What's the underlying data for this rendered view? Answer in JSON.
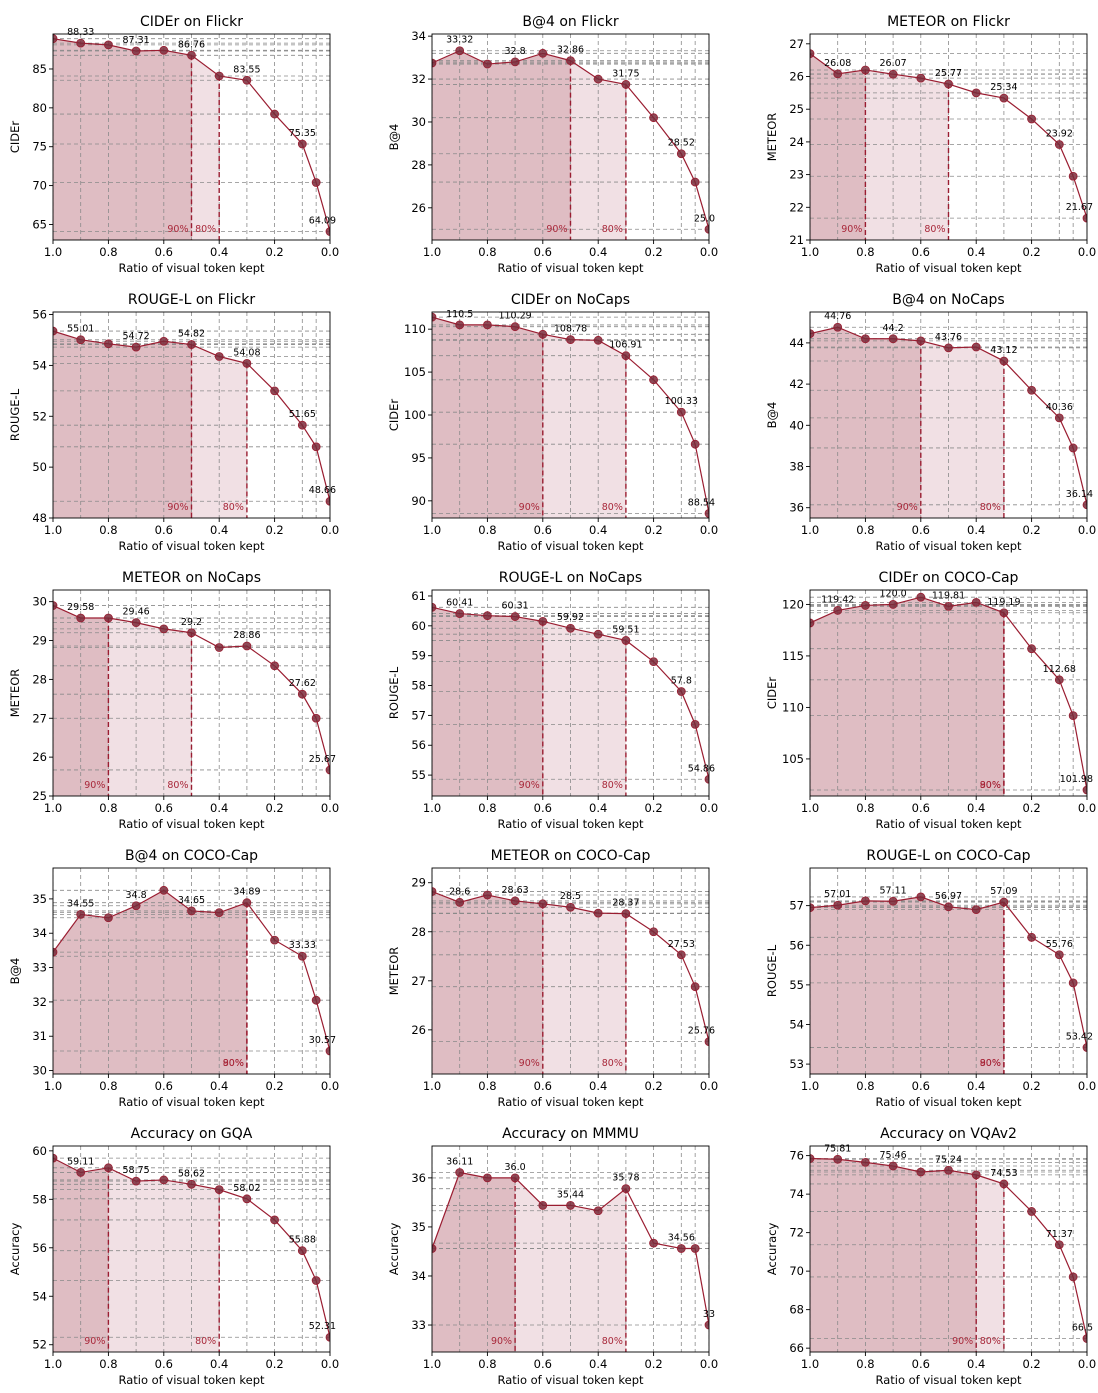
{
  "figure": {
    "colors": {
      "line": "#9a1d31",
      "marker_face": "#7a2a3a",
      "fill90": "#dcb6bd",
      "fill80": "#f0dde1",
      "grid": "#8a8a8a"
    },
    "markers": {
      "threshold_90": "90%",
      "threshold_80": "80%"
    }
  },
  "chart_data": [
    {
      "type": "line",
      "title": "CIDEr on Flickr",
      "xlabel": "Ratio of visual token kept",
      "ylabel": "CIDEr",
      "x": [
        1.0,
        0.9,
        0.8,
        0.7,
        0.6,
        0.5,
        0.4,
        0.3,
        0.2,
        0.1,
        0.05,
        0.0
      ],
      "y": [
        88.9,
        88.33,
        88.1,
        87.31,
        87.4,
        86.76,
        84.1,
        83.55,
        79.2,
        75.35,
        70.4,
        64.09
      ],
      "labels": [
        null,
        "88.33",
        null,
        "87.31",
        null,
        "86.76",
        null,
        "83.55",
        null,
        "75.35",
        null,
        "64.09"
      ],
      "xlim": [
        1.0,
        0.0
      ],
      "ylim": [
        63,
        89.5
      ],
      "yticks": [
        65,
        70,
        75,
        80,
        85
      ],
      "xticks": [
        1.0,
        0.8,
        0.6,
        0.4,
        0.2,
        0.0
      ],
      "threshold_90_x": 0.5,
      "threshold_80_x": 0.4
    },
    {
      "type": "line",
      "title": "B@4 on Flickr",
      "xlabel": "Ratio of visual token kept",
      "ylabel": "B@4",
      "x": [
        1.0,
        0.9,
        0.8,
        0.7,
        0.6,
        0.5,
        0.4,
        0.3,
        0.2,
        0.1,
        0.05,
        0.0
      ],
      "y": [
        32.75,
        33.32,
        32.7,
        32.8,
        33.2,
        32.86,
        32.0,
        31.75,
        30.2,
        28.52,
        27.2,
        25.0
      ],
      "labels": [
        null,
        "33.32",
        null,
        "32.8",
        null,
        "32.86",
        null,
        "31.75",
        null,
        "28.52",
        null,
        "25.0"
      ],
      "xlim": [
        1.0,
        0.0
      ],
      "ylim": [
        24.5,
        34.1
      ],
      "yticks": [
        26,
        28,
        30,
        32,
        34
      ],
      "xticks": [
        1.0,
        0.8,
        0.6,
        0.4,
        0.2,
        0.0
      ],
      "threshold_90_x": 0.5,
      "threshold_80_x": 0.3
    },
    {
      "type": "line",
      "title": "METEOR on Flickr",
      "xlabel": "Ratio of visual token kept",
      "ylabel": "METEOR",
      "x": [
        1.0,
        0.9,
        0.8,
        0.7,
        0.6,
        0.5,
        0.4,
        0.3,
        0.2,
        0.1,
        0.05,
        0.0
      ],
      "y": [
        26.7,
        26.08,
        26.2,
        26.07,
        25.95,
        25.77,
        25.5,
        25.34,
        24.7,
        23.92,
        22.95,
        21.67
      ],
      "labels": [
        null,
        "26.08",
        null,
        "26.07",
        null,
        "25.77",
        null,
        "25.34",
        null,
        "23.92",
        null,
        "21.67"
      ],
      "xlim": [
        1.0,
        0.0
      ],
      "ylim": [
        21,
        27.3
      ],
      "yticks": [
        21,
        22,
        23,
        24,
        25,
        26,
        27
      ],
      "xticks": [
        1.0,
        0.8,
        0.6,
        0.4,
        0.2,
        0.0
      ],
      "threshold_90_x": 0.8,
      "threshold_80_x": 0.5
    },
    {
      "type": "line",
      "title": "ROUGE-L on Flickr",
      "xlabel": "Ratio of visual token kept",
      "ylabel": "ROUGE-L",
      "x": [
        1.0,
        0.9,
        0.8,
        0.7,
        0.6,
        0.5,
        0.4,
        0.3,
        0.2,
        0.1,
        0.05,
        0.0
      ],
      "y": [
        55.35,
        55.01,
        54.85,
        54.72,
        54.95,
        54.82,
        54.35,
        54.08,
        53.0,
        51.65,
        50.8,
        48.66
      ],
      "labels": [
        null,
        "55.01",
        null,
        "54.72",
        null,
        "54.82",
        null,
        "54.08",
        null,
        "51.65",
        null,
        "48.66"
      ],
      "xlim": [
        1.0,
        0.0
      ],
      "ylim": [
        48,
        56.1
      ],
      "yticks": [
        48,
        50,
        52,
        54,
        56
      ],
      "xticks": [
        1.0,
        0.8,
        0.6,
        0.4,
        0.2,
        0.0
      ],
      "threshold_90_x": 0.5,
      "threshold_80_x": 0.3
    },
    {
      "type": "line",
      "title": "CIDEr on NoCaps",
      "xlabel": "Ratio of visual token kept",
      "ylabel": "CIDEr",
      "x": [
        1.0,
        0.9,
        0.8,
        0.7,
        0.6,
        0.5,
        0.4,
        0.3,
        0.2,
        0.1,
        0.05,
        0.0
      ],
      "y": [
        111.4,
        110.5,
        110.5,
        110.29,
        109.4,
        108.78,
        108.7,
        106.91,
        104.1,
        100.33,
        96.6,
        88.54
      ],
      "labels": [
        null,
        "110.5",
        null,
        "110.29",
        null,
        "108.78",
        null,
        "106.91",
        null,
        "100.33",
        null,
        "88.54"
      ],
      "xlim": [
        1.0,
        0.0
      ],
      "ylim": [
        88,
        112
      ],
      "yticks": [
        90,
        95,
        100,
        105,
        110
      ],
      "xticks": [
        1.0,
        0.8,
        0.6,
        0.4,
        0.2,
        0.0
      ],
      "threshold_90_x": 0.6,
      "threshold_80_x": 0.3
    },
    {
      "type": "line",
      "title": "B@4 on NoCaps",
      "xlabel": "Ratio of visual token kept",
      "ylabel": "B@4",
      "x": [
        1.0,
        0.9,
        0.8,
        0.7,
        0.6,
        0.5,
        0.4,
        0.3,
        0.2,
        0.1,
        0.05,
        0.0
      ],
      "y": [
        44.45,
        44.76,
        44.2,
        44.2,
        44.1,
        43.76,
        43.8,
        43.12,
        41.7,
        40.36,
        38.9,
        36.14
      ],
      "labels": [
        null,
        "44.76",
        null,
        "44.2",
        null,
        "43.76",
        null,
        "43.12",
        null,
        "40.36",
        null,
        "36.14"
      ],
      "xlim": [
        1.0,
        0.0
      ],
      "ylim": [
        35.5,
        45.5
      ],
      "yticks": [
        36,
        38,
        40,
        42,
        44
      ],
      "xticks": [
        1.0,
        0.8,
        0.6,
        0.4,
        0.2,
        0.0
      ],
      "threshold_90_x": 0.6,
      "threshold_80_x": 0.3
    },
    {
      "type": "line",
      "title": "METEOR on NoCaps",
      "xlabel": "Ratio of visual token kept",
      "ylabel": "METEOR",
      "x": [
        1.0,
        0.9,
        0.8,
        0.7,
        0.6,
        0.5,
        0.4,
        0.3,
        0.2,
        0.1,
        0.05,
        0.0
      ],
      "y": [
        29.9,
        29.58,
        29.58,
        29.46,
        29.3,
        29.2,
        28.82,
        28.86,
        28.35,
        27.62,
        27.0,
        25.67
      ],
      "labels": [
        null,
        "29.58",
        null,
        "29.46",
        null,
        "29.2",
        null,
        "28.86",
        null,
        "27.62",
        null,
        "25.67"
      ],
      "xlim": [
        1.0,
        0.0
      ],
      "ylim": [
        25,
        30.3
      ],
      "yticks": [
        25,
        26,
        27,
        28,
        29,
        30
      ],
      "xticks": [
        1.0,
        0.8,
        0.6,
        0.4,
        0.2,
        0.0
      ],
      "threshold_90_x": 0.8,
      "threshold_80_x": 0.5
    },
    {
      "type": "line",
      "title": "ROUGE-L on NoCaps",
      "xlabel": "Ratio of visual token kept",
      "ylabel": "ROUGE-L",
      "x": [
        1.0,
        0.9,
        0.8,
        0.7,
        0.6,
        0.5,
        0.4,
        0.3,
        0.2,
        0.1,
        0.05,
        0.0
      ],
      "y": [
        60.62,
        60.41,
        60.34,
        60.31,
        60.15,
        59.92,
        59.72,
        59.51,
        58.8,
        57.8,
        56.7,
        54.86
      ],
      "labels": [
        null,
        "60.41",
        null,
        "60.31",
        null,
        "59.92",
        null,
        "59.51",
        null,
        "57.8",
        null,
        "54.86"
      ],
      "xlim": [
        1.0,
        0.0
      ],
      "ylim": [
        54.3,
        61.2
      ],
      "yticks": [
        55,
        56,
        57,
        58,
        59,
        60,
        61
      ],
      "xticks": [
        1.0,
        0.8,
        0.6,
        0.4,
        0.2,
        0.0
      ],
      "threshold_90_x": 0.6,
      "threshold_80_x": 0.3
    },
    {
      "type": "line",
      "title": "CIDEr on COCO-Cap",
      "xlabel": "Ratio of visual token kept",
      "ylabel": "CIDEr",
      "x": [
        1.0,
        0.9,
        0.8,
        0.7,
        0.6,
        0.5,
        0.4,
        0.3,
        0.2,
        0.1,
        0.05,
        0.0
      ],
      "y": [
        118.2,
        119.42,
        119.9,
        120.0,
        120.7,
        119.81,
        120.2,
        119.19,
        115.7,
        112.68,
        109.2,
        101.98
      ],
      "labels": [
        null,
        "119.42",
        null,
        "120.0",
        null,
        "119.81",
        null,
        "119.19",
        null,
        "112.68",
        null,
        "101.98"
      ],
      "xlim": [
        1.0,
        0.0
      ],
      "ylim": [
        101.4,
        121.4
      ],
      "yticks": [
        105,
        110,
        115,
        120
      ],
      "xticks": [
        1.0,
        0.8,
        0.6,
        0.4,
        0.2,
        0.0
      ],
      "threshold_90_x": 0.3,
      "threshold_80_x": 0.3
    },
    {
      "type": "line",
      "title": "B@4 on COCO-Cap",
      "xlabel": "Ratio of visual token kept",
      "ylabel": "B@4",
      "x": [
        1.0,
        0.9,
        0.8,
        0.7,
        0.6,
        0.5,
        0.4,
        0.3,
        0.2,
        0.1,
        0.05,
        0.0
      ],
      "y": [
        33.45,
        34.55,
        34.45,
        34.8,
        35.25,
        34.65,
        34.6,
        34.89,
        33.8,
        33.33,
        32.05,
        30.57
      ],
      "labels": [
        null,
        "34.55",
        null,
        "34.8",
        null,
        "34.65",
        null,
        "34.89",
        null,
        "33.33",
        null,
        "30.57"
      ],
      "xlim": [
        1.0,
        0.0
      ],
      "ylim": [
        29.9,
        35.9
      ],
      "yticks": [
        30,
        31,
        32,
        33,
        34,
        35
      ],
      "xticks": [
        1.0,
        0.8,
        0.6,
        0.4,
        0.2,
        0.0
      ],
      "threshold_90_x": 0.3,
      "threshold_80_x": 0.3
    },
    {
      "type": "line",
      "title": "METEOR on COCO-Cap",
      "xlabel": "Ratio of visual token kept",
      "ylabel": "METEOR",
      "x": [
        1.0,
        0.9,
        0.8,
        0.7,
        0.6,
        0.5,
        0.4,
        0.3,
        0.2,
        0.1,
        0.05,
        0.0
      ],
      "y": [
        28.82,
        28.6,
        28.75,
        28.63,
        28.57,
        28.5,
        28.38,
        28.37,
        28.0,
        27.53,
        26.88,
        25.76
      ],
      "labels": [
        null,
        "28.6",
        null,
        "28.63",
        null,
        "28.5",
        null,
        "28.37",
        null,
        "27.53",
        null,
        "25.76"
      ],
      "xlim": [
        1.0,
        0.0
      ],
      "ylim": [
        25.1,
        29.3
      ],
      "yticks": [
        26,
        27,
        28,
        29
      ],
      "xticks": [
        1.0,
        0.8,
        0.6,
        0.4,
        0.2,
        0.0
      ],
      "threshold_90_x": 0.6,
      "threshold_80_x": 0.3
    },
    {
      "type": "line",
      "title": "ROUGE-L on COCO-Cap",
      "xlabel": "Ratio of visual token kept",
      "ylabel": "ROUGE-L",
      "x": [
        1.0,
        0.9,
        0.8,
        0.7,
        0.6,
        0.5,
        0.4,
        0.3,
        0.2,
        0.1,
        0.05,
        0.0
      ],
      "y": [
        56.95,
        57.01,
        57.12,
        57.11,
        57.22,
        56.97,
        56.9,
        57.09,
        56.2,
        55.76,
        55.05,
        53.42
      ],
      "labels": [
        null,
        "57.01",
        null,
        "57.11",
        null,
        "56.97",
        null,
        "57.09",
        null,
        "55.76",
        null,
        "53.42"
      ],
      "xlim": [
        1.0,
        0.0
      ],
      "ylim": [
        52.75,
        57.95
      ],
      "yticks": [
        53,
        54,
        55,
        56,
        57
      ],
      "xticks": [
        1.0,
        0.8,
        0.6,
        0.4,
        0.2,
        0.0
      ],
      "threshold_90_x": 0.3,
      "threshold_80_x": 0.3
    },
    {
      "type": "line",
      "title": "Accuracy on GQA",
      "xlabel": "Ratio of visual token kept",
      "ylabel": "Accuracy",
      "x": [
        1.0,
        0.9,
        0.8,
        0.7,
        0.6,
        0.5,
        0.4,
        0.3,
        0.2,
        0.1,
        0.05,
        0.0
      ],
      "y": [
        59.7,
        59.11,
        59.3,
        58.75,
        58.8,
        58.62,
        58.4,
        58.02,
        57.15,
        55.88,
        54.65,
        52.31
      ],
      "labels": [
        null,
        "59.11",
        null,
        "58.75",
        null,
        "58.62",
        null,
        "58.02",
        null,
        "55.88",
        null,
        "52.31"
      ],
      "xlim": [
        1.0,
        0.0
      ],
      "ylim": [
        51.7,
        60.2
      ],
      "yticks": [
        52,
        54,
        56,
        58,
        60
      ],
      "xticks": [
        1.0,
        0.8,
        0.6,
        0.4,
        0.2,
        0.0
      ],
      "threshold_90_x": 0.8,
      "threshold_80_x": 0.4
    },
    {
      "type": "line",
      "title": "Accuracy on MMMU",
      "xlabel": "Ratio of visual token kept",
      "ylabel": "Accuracy",
      "x": [
        1.0,
        0.9,
        0.8,
        0.7,
        0.6,
        0.5,
        0.4,
        0.3,
        0.2,
        0.1,
        0.05,
        0.0
      ],
      "y": [
        34.56,
        36.11,
        36.0,
        36.0,
        35.44,
        35.44,
        35.33,
        35.78,
        34.67,
        34.56,
        34.56,
        33.0
      ],
      "labels": [
        null,
        "36.11",
        null,
        "36.0",
        null,
        "35.44",
        null,
        "35.78",
        null,
        "34.56",
        null,
        "33"
      ],
      "xlim": [
        1.0,
        0.0
      ],
      "ylim": [
        32.45,
        36.65
      ],
      "yticks": [
        33,
        34,
        35,
        36
      ],
      "xticks": [
        1.0,
        0.8,
        0.6,
        0.4,
        0.2,
        0.0
      ],
      "threshold_90_x": 0.7,
      "threshold_80_x": 0.3
    },
    {
      "type": "line",
      "title": "Accuracy on VQAv2",
      "xlabel": "Ratio of visual token kept",
      "ylabel": "Accuracy",
      "x": [
        1.0,
        0.9,
        0.8,
        0.7,
        0.6,
        0.5,
        0.4,
        0.3,
        0.2,
        0.1,
        0.05,
        0.0
      ],
      "y": [
        75.85,
        75.81,
        75.65,
        75.46,
        75.15,
        75.24,
        75.0,
        74.53,
        73.1,
        71.37,
        69.7,
        66.5
      ],
      "labels": [
        null,
        "75.81",
        null,
        "75.46",
        null,
        "75.24",
        null,
        "74.53",
        null,
        "71.37",
        null,
        "66.5"
      ],
      "xlim": [
        1.0,
        0.0
      ],
      "ylim": [
        65.8,
        76.5
      ],
      "yticks": [
        66,
        68,
        70,
        72,
        74,
        76
      ],
      "xticks": [
        1.0,
        0.8,
        0.6,
        0.4,
        0.2,
        0.0
      ],
      "threshold_90_x": 0.4,
      "threshold_80_x": 0.3
    }
  ]
}
